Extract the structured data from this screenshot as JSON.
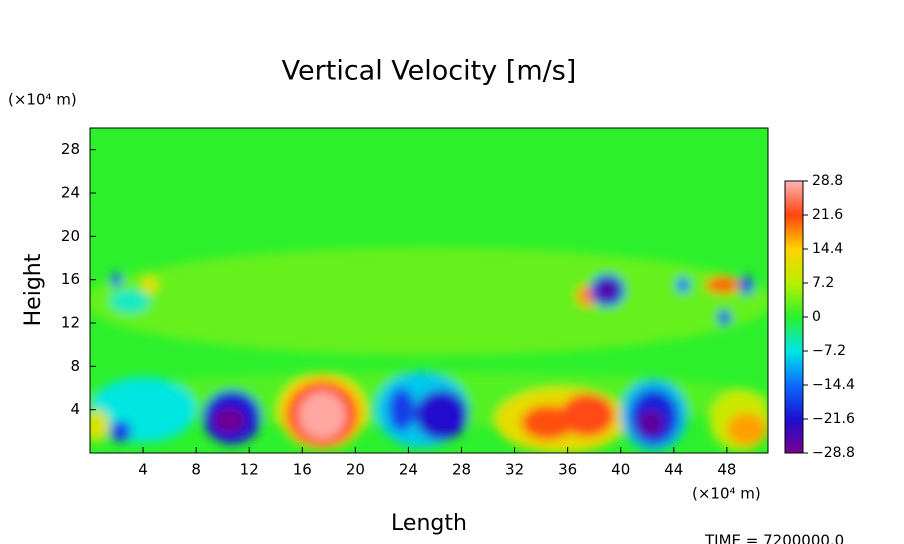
{
  "chart_data": {
    "type": "contour",
    "title": "Vertical Velocity [m/s]",
    "x_label": "Length",
    "y_label": "Height",
    "x_unit": "(×10⁴ m)",
    "y_unit": "(×10⁴ m)",
    "footer": "TIME = 7200000.0",
    "xlim": [
      0,
      51.1
    ],
    "ylim": [
      0,
      30
    ],
    "xticks": [
      4,
      8,
      12,
      16,
      20,
      24,
      28,
      32,
      36,
      40,
      44,
      48
    ],
    "yticks": [
      4,
      8,
      12,
      16,
      20,
      24,
      28
    ],
    "clim": [
      -28.8,
      28.8
    ],
    "cticks": [
      28.8,
      21.6,
      14.4,
      7.2,
      0,
      {
        "value": -7.2,
        "label": "−7.2"
      },
      {
        "value": -14.4,
        "label": "−14.4"
      },
      {
        "value": -21.6,
        "label": "−21.6"
      },
      {
        "value": -28.8,
        "label": "−28.8"
      }
    ],
    "colorscale": [
      "#78008c",
      "#1c10d2",
      "#0a6cff",
      "#00e6e6",
      "#2cf02c",
      "#b8f000",
      "#ffd200",
      "#ff4410",
      "#ffb4b4"
    ],
    "background_value": 0,
    "features": [
      {
        "x": 25.5,
        "y": 14,
        "rx": 26,
        "ry": 5,
        "value": 3
      },
      {
        "x": 25.5,
        "y": 5,
        "rx": 26,
        "ry": 2.5,
        "value": 2
      },
      {
        "x": 4,
        "y": 4,
        "rx": 4,
        "ry": 3,
        "value": -7
      },
      {
        "x": 0.5,
        "y": 2.5,
        "rx": 1,
        "ry": 1.5,
        "value": 10
      },
      {
        "x": 2.3,
        "y": 2,
        "rx": 0.8,
        "ry": 1,
        "value": -18
      },
      {
        "x": 10.7,
        "y": 3.3,
        "rx": 2.2,
        "ry": 2.5,
        "value": -21
      },
      {
        "x": 10.5,
        "y": 3,
        "rx": 1.2,
        "ry": 1.2,
        "value": -28
      },
      {
        "x": 17.5,
        "y": 3.8,
        "rx": 3.3,
        "ry": 3.5,
        "value": 14
      },
      {
        "x": 17.5,
        "y": 3.6,
        "rx": 2.7,
        "ry": 3,
        "value": 22
      },
      {
        "x": 17.5,
        "y": 3.5,
        "rx": 1.8,
        "ry": 2.2,
        "value": 28
      },
      {
        "x": 25,
        "y": 4,
        "rx": 3.5,
        "ry": 3.5,
        "value": -9
      },
      {
        "x": 26.5,
        "y": 3.5,
        "rx": 2,
        "ry": 2.3,
        "value": -22
      },
      {
        "x": 23.5,
        "y": 4,
        "rx": 1,
        "ry": 2,
        "value": -18
      },
      {
        "x": 35.5,
        "y": 3,
        "rx": 5,
        "ry": 3,
        "value": 12
      },
      {
        "x": 34.5,
        "y": 2.8,
        "rx": 2,
        "ry": 1.6,
        "value": 21
      },
      {
        "x": 37.5,
        "y": 3.5,
        "rx": 2,
        "ry": 2,
        "value": 22
      },
      {
        "x": 42.5,
        "y": 3.5,
        "rx": 2.5,
        "ry": 3.3,
        "value": -10
      },
      {
        "x": 42.5,
        "y": 3.3,
        "rx": 1.8,
        "ry": 2.5,
        "value": -20
      },
      {
        "x": 42.3,
        "y": 2.8,
        "rx": 1,
        "ry": 1.2,
        "value": -27
      },
      {
        "x": 49,
        "y": 3,
        "rx": 2.3,
        "ry": 2.8,
        "value": 9
      },
      {
        "x": 49.5,
        "y": 2.2,
        "rx": 1.5,
        "ry": 1.5,
        "value": 17
      },
      {
        "x": 3,
        "y": 14,
        "rx": 1.5,
        "ry": 1,
        "value": -6
      },
      {
        "x": 2,
        "y": 16,
        "rx": 0.4,
        "ry": 0.7,
        "value": -16
      },
      {
        "x": 4.5,
        "y": 15.5,
        "rx": 0.6,
        "ry": 0.8,
        "value": 12
      },
      {
        "x": 37.5,
        "y": 14.5,
        "rx": 0.8,
        "ry": 1,
        "value": 18
      },
      {
        "x": 39,
        "y": 15,
        "rx": 1.3,
        "ry": 1.5,
        "value": -18
      },
      {
        "x": 39,
        "y": 15,
        "rx": 0.8,
        "ry": 1,
        "value": -26
      },
      {
        "x": 47.7,
        "y": 15.5,
        "rx": 1.3,
        "ry": 0.8,
        "value": 20
      },
      {
        "x": 49.5,
        "y": 15.5,
        "rx": 0.5,
        "ry": 0.9,
        "value": -18
      },
      {
        "x": 44.7,
        "y": 15.5,
        "rx": 0.5,
        "ry": 0.7,
        "value": -15
      },
      {
        "x": 47.8,
        "y": 12.5,
        "rx": 0.5,
        "ry": 0.7,
        "value": -18
      }
    ]
  }
}
